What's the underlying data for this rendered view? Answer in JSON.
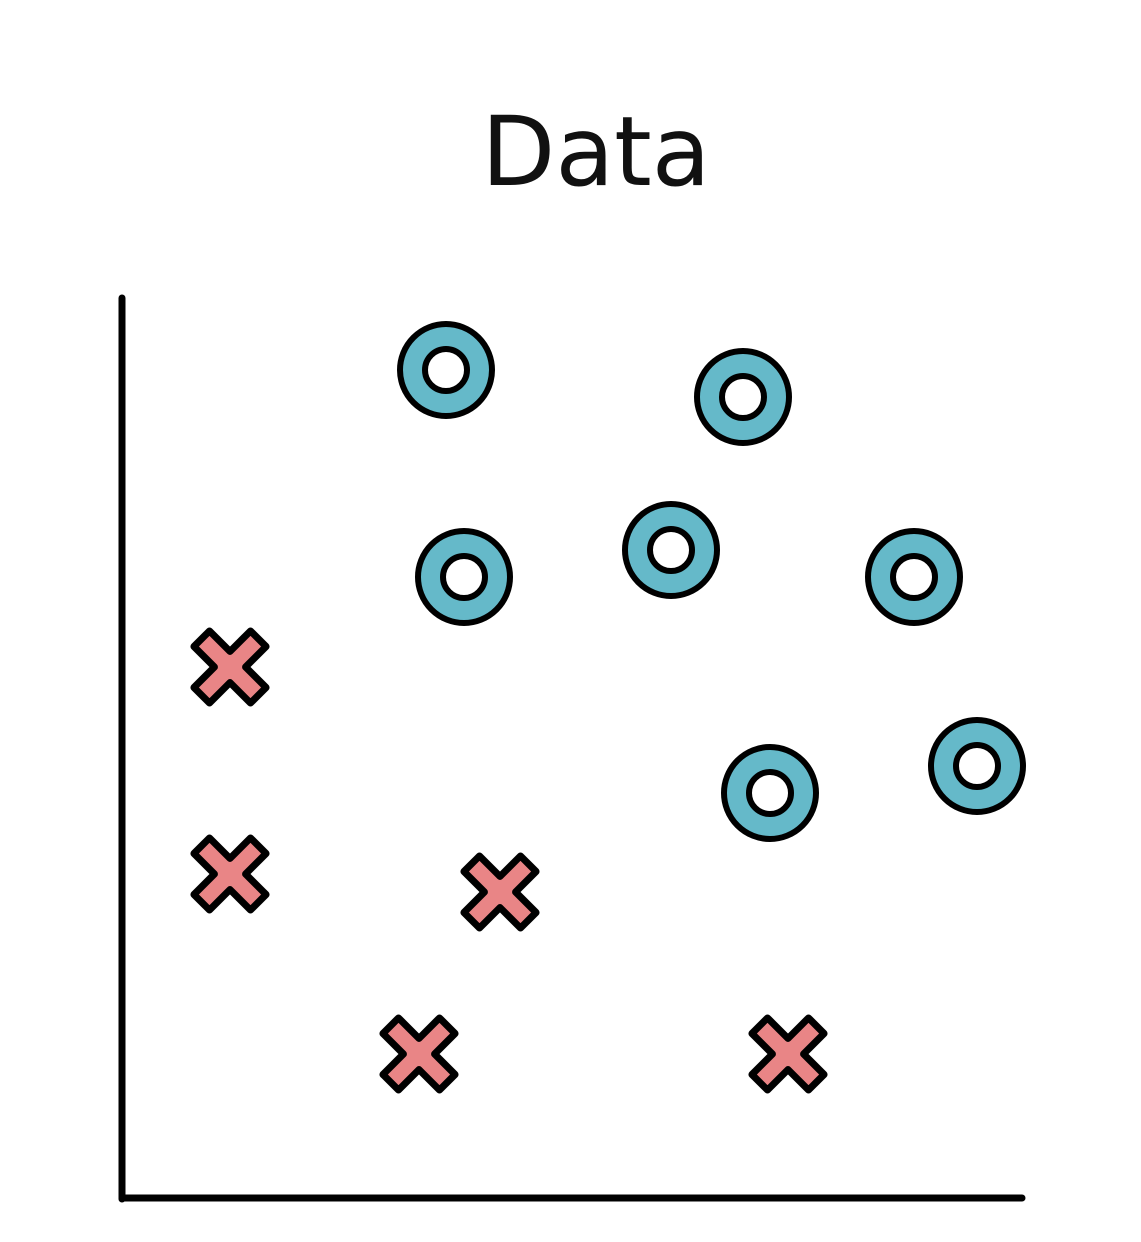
{
  "chart_data": {
    "type": "scatter",
    "title": "Data",
    "xlabel": "",
    "ylabel": "",
    "xlim": [
      0,
      100
    ],
    "ylim": [
      0,
      100
    ],
    "grid": false,
    "legend": "none",
    "series": [
      {
        "marker": "circle",
        "color": "#65b9c9",
        "points": [
          {
            "x": 36,
            "y": 92
          },
          {
            "x": 69,
            "y": 89
          },
          {
            "x": 38,
            "y": 69
          },
          {
            "x": 61,
            "y": 72
          },
          {
            "x": 88,
            "y": 69
          },
          {
            "x": 72,
            "y": 45
          },
          {
            "x": 95,
            "y": 48
          }
        ]
      },
      {
        "marker": "cross",
        "color": "#e98586",
        "points": [
          {
            "x": 12,
            "y": 59
          },
          {
            "x": 12,
            "y": 36
          },
          {
            "x": 42,
            "y": 34
          },
          {
            "x": 33,
            "y": 16
          },
          {
            "x": 74,
            "y": 16
          }
        ]
      }
    ]
  }
}
